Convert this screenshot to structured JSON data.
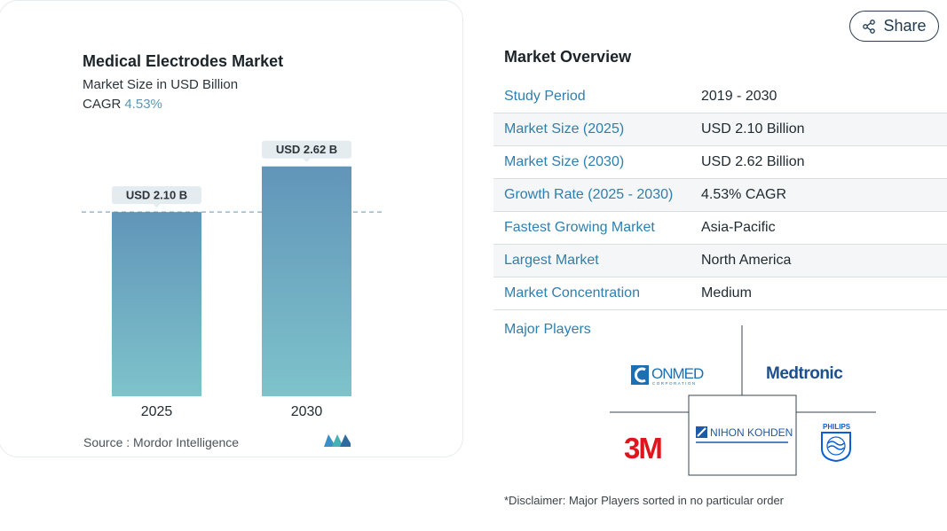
{
  "chart_data": {
    "type": "bar",
    "title": "Medical Electrodes Market",
    "subtitle": "Market Size in USD Billion",
    "cagr_label": "CAGR",
    "cagr_value": "4.53%",
    "categories": [
      "2025",
      "2030"
    ],
    "values": [
      2.1,
      2.62
    ],
    "data_labels": [
      "USD 2.10 B",
      "USD 2.62 B"
    ],
    "ylim": [
      0,
      2.9
    ],
    "reference_line_value": 2.1,
    "bar_gradient": [
      "#6195b9",
      "#7ec3cb"
    ],
    "source": "Source :  Mordor Intelligence"
  },
  "share": {
    "label": "Share",
    "icon": "share-icon"
  },
  "overview": {
    "title": "Market Overview",
    "rows": [
      {
        "key": "Study Period",
        "value": "2019 - 2030"
      },
      {
        "key": "Market Size (2025)",
        "value": "USD 2.10 Billion"
      },
      {
        "key": "Market Size (2030)",
        "value": "USD 2.62 Billion"
      },
      {
        "key": "Growth Rate (2025 - 2030)",
        "value": "4.53% CAGR"
      },
      {
        "key": "Fastest Growing Market",
        "value": "Asia-Pacific"
      },
      {
        "key": "Largest Market",
        "value": "North America"
      },
      {
        "key": "Market Concentration",
        "value": "Medium"
      }
    ]
  },
  "major_players": {
    "label": "Major Players",
    "logos": [
      "ConMed Corporation",
      "Medtronic",
      "3M",
      "NIHON KOHDEN",
      "PHILIPS"
    ]
  },
  "disclaimer": "*Disclaimer: Major Players sorted in no particular order",
  "colors": {
    "accent_blue": "#2f7fae",
    "cagr_blue": "#5b97b7",
    "medtronic_blue": "#1b4f8f",
    "red_3m": "#e0141c",
    "nihon_blue": "#1e5aa8",
    "philips_blue": "#0b5ed7"
  }
}
